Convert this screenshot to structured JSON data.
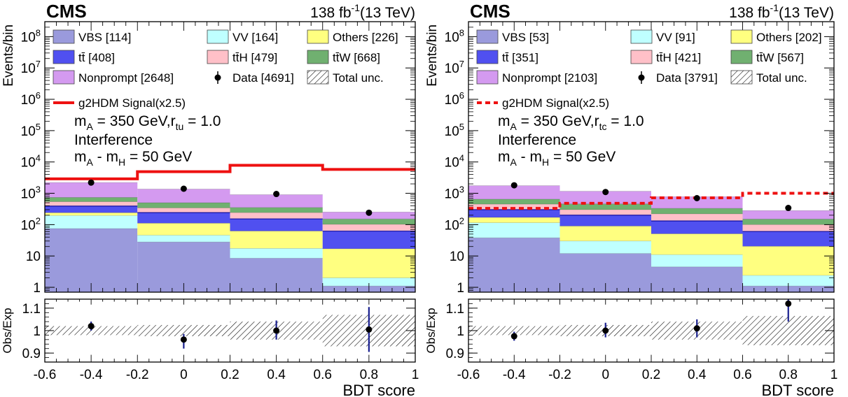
{
  "colors": {
    "VBS": "#9A9ADC",
    "ttbar": "#5050F0",
    "Nonprompt": "#D49AF0",
    "VV": "#BFFFFF",
    "ttH": "#FFC0C8",
    "Others": "#FFFF80",
    "ttW": "#70B070",
    "signal": "#EE1111",
    "data": "#000000",
    "errbar": "#1A2090"
  },
  "chart_data": [
    {
      "type": "bar",
      "experiment": "CMS",
      "lumi": "138 fb",
      "lumi_exp": "-1",
      "energy": "(13 TeV)",
      "ylabel": "Events/bin",
      "ratio_ylabel": "Obs/Exp",
      "xlabel": "BDT score",
      "xlim": [
        -0.6,
        1.0
      ],
      "ylim": [
        0.7,
        300000000
      ],
      "yscale": "log",
      "ratio_ylim": [
        0.86,
        1.14
      ],
      "x_ticks": [
        "-0.6",
        "-0.4",
        "-0.2",
        "0",
        "0.2",
        "0.4",
        "0.6",
        "0.8",
        "1"
      ],
      "y_ticks": [
        {
          "v": 1,
          "b": "1",
          "e": ""
        },
        {
          "v": 10,
          "b": "10",
          "e": ""
        },
        {
          "v": 100,
          "b": "10",
          "e": "2"
        },
        {
          "v": 1000,
          "b": "10",
          "e": "3"
        },
        {
          "v": 10000,
          "b": "10",
          "e": "4"
        },
        {
          "v": 100000,
          "b": "10",
          "e": "5"
        },
        {
          "v": 1000000,
          "b": "10",
          "e": "6"
        },
        {
          "v": 10000000,
          "b": "10",
          "e": "7"
        },
        {
          "v": 100000000,
          "b": "10",
          "e": "8"
        }
      ],
      "ratio_ticks": [
        "0.9",
        "1",
        "1.1"
      ],
      "ratio_tick_values": [
        0.9,
        1.0,
        1.1
      ],
      "bins": [
        -0.6,
        -0.2,
        0.2,
        0.6,
        1.0
      ],
      "stack": [
        {
          "key": "VBS",
          "values": [
            75,
            28,
            8.5,
            1.1
          ]
        },
        {
          "key": "VV",
          "values": [
            120,
            18,
            9,
            0.9
          ]
        },
        {
          "key": "Others",
          "values": [
            45,
            65,
            45,
            15
          ]
        },
        {
          "key": "ttbar",
          "values": [
            150,
            130,
            90,
            45
          ]
        },
        {
          "key": "ttH",
          "values": [
            150,
            100,
            90,
            40
          ]
        },
        {
          "key": "ttW",
          "values": [
            200,
            160,
            110,
            50
          ]
        },
        {
          "key": "Nonprompt",
          "values": [
            1460,
            860,
            550,
            100
          ]
        }
      ],
      "signal": {
        "values": [
          2900,
          4900,
          7800,
          5800
        ],
        "dashed": false
      },
      "data": {
        "x": [
          -0.4,
          0.0,
          0.4,
          0.8
        ],
        "y": [
          2200,
          1400,
          950,
          240
        ],
        "err_low": [
          47,
          37,
          31,
          15
        ],
        "err_high": [
          47,
          37,
          31,
          15
        ]
      },
      "ratio": {
        "y": [
          1.02,
          0.96,
          1.0,
          1.005
        ],
        "err_low": [
          0.02,
          0.04,
          0.04,
          0.1
        ],
        "err_high": [
          0.02,
          0.025,
          0.045,
          0.1
        ]
      },
      "unc_band": [
        0.02,
        0.025,
        0.04,
        0.07
      ],
      "legend": [
        {
          "key": "VBS",
          "label": "VBS [114]",
          "kind": "box"
        },
        {
          "key": "VV",
          "label": "VV [164]",
          "kind": "box"
        },
        {
          "key": "Others",
          "label": "Others [226]",
          "kind": "box"
        },
        {
          "key": "ttbar",
          "label": "tt̄ [408]",
          "kind": "box"
        },
        {
          "key": "ttH",
          "label": "tt̄H [479]",
          "kind": "box"
        },
        {
          "key": "ttW",
          "label": "tt̄W [668]",
          "kind": "box"
        },
        {
          "key": "Nonprompt",
          "label": "Nonprompt [2648]",
          "kind": "box"
        },
        {
          "key": "data",
          "label": "Data [4691]",
          "kind": "marker"
        },
        {
          "key": "unc",
          "label": "Total unc.",
          "kind": "hatch"
        }
      ],
      "signal_label": "g2HDM Signal(x2.5)",
      "annotation": {
        "mass_line": "m_A = 350 GeV, r_tu = 1.0",
        "mass_pre": "m",
        "mass_sub": "A",
        "mass_post": " = 350 GeV,r",
        "coupling_sub": "tu",
        "coupling_val": " = 1.0",
        "interference": "Interference",
        "diff_m1": "m",
        "diff_s1": "A",
        "diff_mid": " - m",
        "diff_s2": "H",
        "diff_tail": " = 50 GeV"
      }
    },
    {
      "type": "bar",
      "experiment": "CMS",
      "lumi": "138 fb",
      "lumi_exp": "-1",
      "energy": "(13 TeV)",
      "ylabel": "Events/bin",
      "ratio_ylabel": "Obs/Exp",
      "xlabel": "BDT score",
      "xlim": [
        -0.6,
        1.0
      ],
      "ylim": [
        0.7,
        300000000
      ],
      "yscale": "log",
      "ratio_ylim": [
        0.86,
        1.14
      ],
      "x_ticks": [
        "-0.6",
        "-0.4",
        "-0.2",
        "0",
        "0.2",
        "0.4",
        "0.6",
        "0.8",
        "1"
      ],
      "y_ticks": [
        {
          "v": 1,
          "b": "1",
          "e": ""
        },
        {
          "v": 10,
          "b": "10",
          "e": ""
        },
        {
          "v": 100,
          "b": "10",
          "e": "2"
        },
        {
          "v": 1000,
          "b": "10",
          "e": "3"
        },
        {
          "v": 10000,
          "b": "10",
          "e": "4"
        },
        {
          "v": 100000,
          "b": "10",
          "e": "5"
        },
        {
          "v": 1000000,
          "b": "10",
          "e": "6"
        },
        {
          "v": 10000000,
          "b": "10",
          "e": "7"
        },
        {
          "v": 100000000,
          "b": "10",
          "e": "8"
        }
      ],
      "ratio_ticks": [
        "0.9",
        "1",
        "1.1"
      ],
      "ratio_tick_values": [
        0.9,
        1.0,
        1.1
      ],
      "bins": [
        -0.6,
        -0.2,
        0.2,
        0.6,
        1.0
      ],
      "stack": [
        {
          "key": "VBS",
          "values": [
            38,
            12,
            4.5,
            1.1
          ]
        },
        {
          "key": "VV",
          "values": [
            77,
            18,
            6.5,
            1.3
          ]
        },
        {
          "key": "Others",
          "values": [
            55,
            60,
            40,
            18
          ]
        },
        {
          "key": "ttbar",
          "values": [
            130,
            110,
            80,
            40
          ]
        },
        {
          "key": "ttH",
          "values": [
            150,
            100,
            90,
            40
          ]
        },
        {
          "key": "ttW",
          "values": [
            200,
            160,
            110,
            50
          ]
        },
        {
          "key": "Nonprompt",
          "values": [
            1100,
            700,
            450,
            130
          ]
        }
      ],
      "signal": {
        "values": [
          330,
          480,
          720,
          1000
        ],
        "dashed": true
      },
      "data": {
        "x": [
          -0.4,
          0.0,
          0.4,
          0.8
        ],
        "y": [
          1800,
          1100,
          700,
          340
        ],
        "err_low": [
          42,
          33,
          26,
          18
        ],
        "err_high": [
          42,
          33,
          26,
          18
        ]
      },
      "ratio": {
        "y": [
          0.975,
          1.0,
          1.01,
          1.12
        ],
        "err_low": [
          0.02,
          0.03,
          0.04,
          0.08
        ],
        "err_high": [
          0.02,
          0.035,
          0.04,
          0.035
        ]
      },
      "unc_band": [
        0.02,
        0.025,
        0.04,
        0.065
      ],
      "legend": [
        {
          "key": "VBS",
          "label": "VBS [53]",
          "kind": "box"
        },
        {
          "key": "VV",
          "label": "VV [91]",
          "kind": "box"
        },
        {
          "key": "Others",
          "label": "Others [202]",
          "kind": "box"
        },
        {
          "key": "ttbar",
          "label": "tt̄ [351]",
          "kind": "box"
        },
        {
          "key": "ttH",
          "label": "tt̄H [421]",
          "kind": "box"
        },
        {
          "key": "ttW",
          "label": "tt̄W [567]",
          "kind": "box"
        },
        {
          "key": "Nonprompt",
          "label": "Nonprompt [2103]",
          "kind": "box"
        },
        {
          "key": "data",
          "label": "Data [3791]",
          "kind": "marker"
        },
        {
          "key": "unc",
          "label": "Total unc.",
          "kind": "hatch"
        }
      ],
      "signal_label": "g2HDM Signal(x2.5)",
      "annotation": {
        "mass_line": "m_A = 350 GeV, r_tc = 1.0",
        "mass_pre": "m",
        "mass_sub": "A",
        "mass_post": " = 350 GeV,r",
        "coupling_sub": "tc",
        "coupling_val": " = 1.0",
        "interference": "Interference",
        "diff_m1": "m",
        "diff_s1": "A",
        "diff_mid": " - m",
        "diff_s2": "H",
        "diff_tail": " = 50 GeV"
      }
    }
  ]
}
